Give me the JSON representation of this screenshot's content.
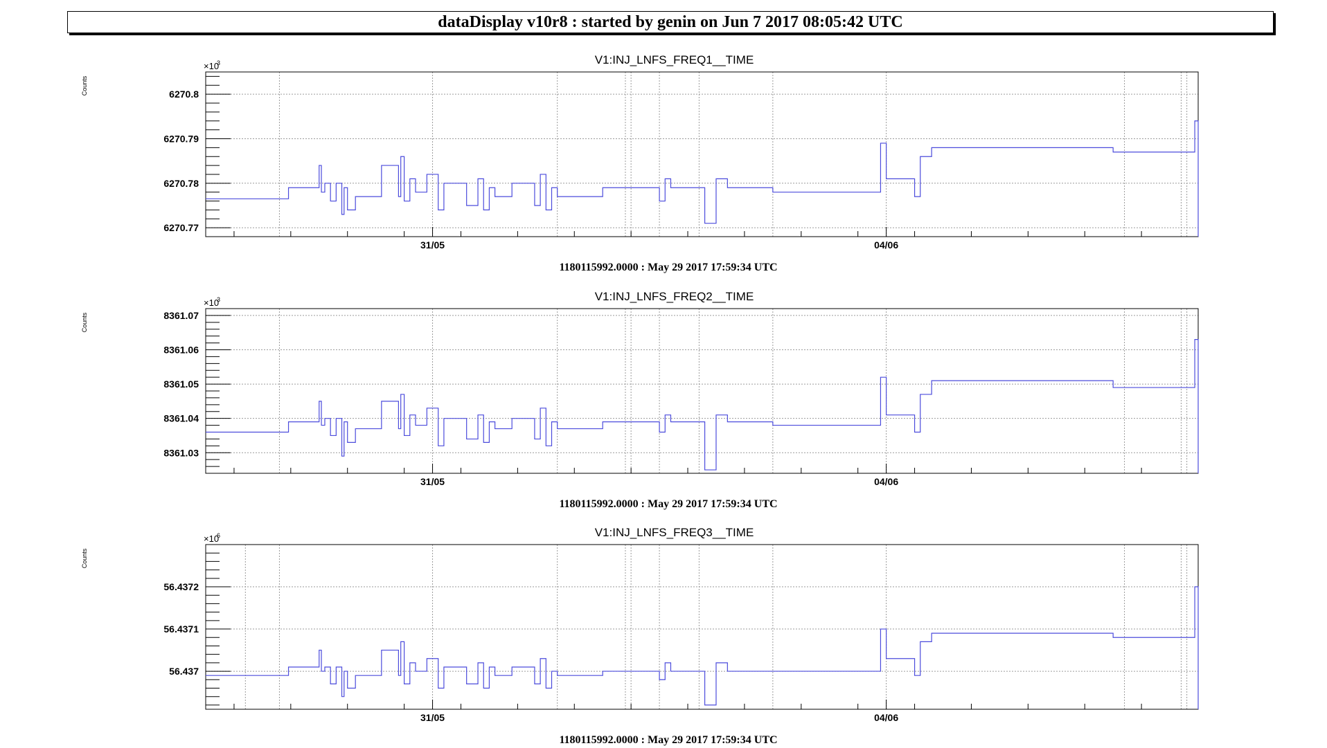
{
  "header": {
    "title": "dataDisplay v10r8 : started by genin on Jun  7 2017 08:05:42 UTC"
  },
  "colors": {
    "series": "#4b4bdc",
    "grid": "#9a9a9a",
    "axis": "#000000"
  },
  "chart_data": [
    {
      "type": "line",
      "title": "V1:INJ_LNFS_FREQ1__TIME",
      "ylabel": "Counts",
      "xlabel": "1180115992.0000 : May 29 2017 17:59:34 UTC",
      "multiplier": "×10",
      "multiplier_exp": "3",
      "x_unit": "days since May 29 2017 17:59:34 UTC",
      "xlim": [
        0,
        8.75
      ],
      "ylim": [
        6270.768,
        6270.805
      ],
      "yticks": [
        6270.77,
        6270.78,
        6270.79,
        6270.8
      ],
      "ytick_labels": [
        "6270.77",
        "6270.78",
        "6270.79",
        "6270.8"
      ],
      "xticks": [
        2.0,
        6.0
      ],
      "xtick_labels": [
        "31/05",
        "04/06"
      ],
      "x_gridlines": [
        0.65,
        2.0,
        3.1,
        3.7,
        3.75,
        4.0,
        4.35,
        5.0,
        6.0,
        8.1,
        8.6,
        8.65
      ],
      "series": [
        {
          "x": [
            0,
            0.72,
            0.73,
            0.98,
            1.0,
            1.02,
            1.05,
            1.1,
            1.15,
            1.2,
            1.22,
            1.25,
            1.32,
            1.4,
            1.55,
            1.7,
            1.72,
            1.75,
            1.8,
            1.85,
            1.9,
            1.95,
            2.05,
            2.1,
            2.15,
            2.3,
            2.4,
            2.45,
            2.5,
            2.55,
            2.6,
            2.7,
            2.9,
            2.95,
            3.0,
            3.05,
            3.1,
            3.3,
            3.5,
            3.9,
            3.95,
            4.0,
            4.05,
            4.1,
            4.2,
            4.4,
            4.5,
            4.6,
            5.0,
            5.05,
            5.9,
            5.95,
            6.0,
            6.05,
            6.1,
            6.2,
            6.25,
            6.3,
            6.35,
            6.4,
            7.9,
            7.95,
            8.0,
            8.7,
            8.72,
            8.75
          ],
          "values": [
            6270.7765,
            6270.7765,
            6270.779,
            6270.779,
            6270.784,
            6270.778,
            6270.78,
            6270.776,
            6270.78,
            6270.773,
            6270.779,
            6270.774,
            6270.777,
            6270.777,
            6270.784,
            6270.777,
            6270.786,
            6270.776,
            6270.781,
            6270.778,
            6270.778,
            6270.782,
            6270.774,
            6270.78,
            6270.78,
            6270.775,
            6270.781,
            6270.774,
            6270.779,
            6270.777,
            6270.777,
            6270.78,
            6270.775,
            6270.782,
            6270.774,
            6270.779,
            6270.777,
            6270.777,
            6270.779,
            6270.779,
            6270.779,
            6270.776,
            6270.781,
            6270.779,
            6270.779,
            6270.771,
            6270.781,
            6270.779,
            6270.778,
            6270.778,
            6270.778,
            6270.789,
            6270.781,
            6270.781,
            6270.781,
            6270.781,
            6270.777,
            6270.786,
            6270.786,
            6270.788,
            6270.788,
            6270.788,
            6270.787,
            6270.787,
            6270.794,
            6270.768
          ]
        }
      ]
    },
    {
      "type": "line",
      "title": "V1:INJ_LNFS_FREQ2__TIME",
      "ylabel": "Counts",
      "xlabel": "1180115992.0000 : May 29 2017 17:59:34 UTC",
      "multiplier": "×10",
      "multiplier_exp": "3",
      "x_unit": "days since May 29 2017 17:59:34 UTC",
      "xlim": [
        0,
        8.75
      ],
      "ylim": [
        8361.024,
        8361.072
      ],
      "yticks": [
        8361.03,
        8361.04,
        8361.05,
        8361.06,
        8361.07
      ],
      "ytick_labels": [
        "8361.03",
        "8361.04",
        "8361.05",
        "8361.06",
        "8361.07"
      ],
      "xticks": [
        2.0,
        6.0
      ],
      "xtick_labels": [
        "31/05",
        "04/06"
      ],
      "x_gridlines": [
        0.65,
        2.0,
        3.1,
        3.7,
        3.75,
        4.0,
        4.35,
        5.0,
        6.0,
        8.1,
        8.6,
        8.65
      ],
      "series": [
        {
          "x": [
            0,
            0.72,
            0.73,
            0.98,
            1.0,
            1.02,
            1.05,
            1.1,
            1.15,
            1.2,
            1.22,
            1.25,
            1.32,
            1.4,
            1.55,
            1.7,
            1.72,
            1.75,
            1.8,
            1.85,
            1.9,
            1.95,
            2.05,
            2.1,
            2.15,
            2.3,
            2.4,
            2.45,
            2.5,
            2.55,
            2.6,
            2.7,
            2.9,
            2.95,
            3.0,
            3.05,
            3.1,
            3.3,
            3.5,
            3.9,
            3.95,
            4.0,
            4.05,
            4.1,
            4.2,
            4.4,
            4.5,
            4.6,
            5.0,
            5.05,
            5.9,
            5.95,
            6.0,
            6.05,
            6.1,
            6.2,
            6.25,
            6.3,
            6.35,
            6.4,
            7.9,
            7.95,
            8.0,
            8.7,
            8.72,
            8.75
          ],
          "values": [
            8361.036,
            8361.036,
            8361.039,
            8361.039,
            8361.045,
            8361.038,
            8361.04,
            8361.035,
            8361.04,
            8361.029,
            8361.039,
            8361.033,
            8361.037,
            8361.037,
            8361.045,
            8361.037,
            8361.047,
            8361.035,
            8361.041,
            8361.038,
            8361.038,
            8361.043,
            8361.032,
            8361.04,
            8361.04,
            8361.034,
            8361.041,
            8361.033,
            8361.039,
            8361.037,
            8361.037,
            8361.04,
            8361.034,
            8361.043,
            8361.032,
            8361.039,
            8361.037,
            8361.037,
            8361.039,
            8361.039,
            8361.039,
            8361.036,
            8361.041,
            8361.039,
            8361.039,
            8361.025,
            8361.041,
            8361.039,
            8361.038,
            8361.038,
            8361.038,
            8361.052,
            8361.041,
            8361.041,
            8361.041,
            8361.041,
            8361.036,
            8361.047,
            8361.047,
            8361.051,
            8361.051,
            8361.051,
            8361.049,
            8361.049,
            8361.063,
            8361.024
          ]
        }
      ]
    },
    {
      "type": "line",
      "title": "V1:INJ_LNFS_FREQ3__TIME",
      "ylabel": "Counts",
      "xlabel": "1180115992.0000 : May 29 2017 17:59:34 UTC",
      "multiplier": "×10",
      "multiplier_exp": "6",
      "x_unit": "days since May 29 2017 17:59:34 UTC",
      "xlim": [
        0,
        8.75
      ],
      "ylim": [
        56.43691,
        56.4373
      ],
      "yticks": [
        56.437,
        56.4371,
        56.4372
      ],
      "ytick_labels": [
        "56.437",
        "56.4371",
        "56.4372"
      ],
      "xticks": [
        2.0,
        6.0
      ],
      "xtick_labels": [
        "31/05",
        "04/06"
      ],
      "x_gridlines": [
        0.35,
        0.65,
        2.0,
        3.1,
        3.7,
        3.75,
        4.0,
        4.35,
        5.0,
        6.0,
        8.1,
        8.6,
        8.65
      ],
      "series": [
        {
          "x": [
            0,
            0.72,
            0.73,
            0.98,
            1.0,
            1.02,
            1.05,
            1.1,
            1.15,
            1.2,
            1.22,
            1.25,
            1.32,
            1.4,
            1.55,
            1.7,
            1.72,
            1.75,
            1.8,
            1.85,
            1.9,
            1.95,
            2.05,
            2.1,
            2.15,
            2.3,
            2.4,
            2.45,
            2.5,
            2.55,
            2.6,
            2.7,
            2.9,
            2.95,
            3.0,
            3.05,
            3.1,
            3.3,
            3.5,
            3.9,
            3.95,
            4.0,
            4.05,
            4.1,
            4.2,
            4.4,
            4.5,
            4.6,
            5.0,
            5.05,
            5.9,
            5.95,
            6.0,
            6.05,
            6.1,
            6.2,
            6.25,
            6.3,
            6.35,
            6.4,
            7.9,
            7.95,
            8.0,
            8.7,
            8.72,
            8.75
          ],
          "values": [
            56.43699,
            56.43699,
            56.43701,
            56.43701,
            56.43705,
            56.437,
            56.43701,
            56.43697,
            56.43701,
            56.43694,
            56.437,
            56.43696,
            56.43699,
            56.43699,
            56.43705,
            56.43699,
            56.43707,
            56.43697,
            56.43702,
            56.437,
            56.437,
            56.43703,
            56.43696,
            56.43701,
            56.43701,
            56.43697,
            56.43702,
            56.43696,
            56.43701,
            56.43699,
            56.43699,
            56.43701,
            56.43697,
            56.43703,
            56.43696,
            56.437,
            56.43699,
            56.43699,
            56.437,
            56.437,
            56.437,
            56.43698,
            56.43702,
            56.437,
            56.437,
            56.43692,
            56.43702,
            56.437,
            56.437,
            56.437,
            56.437,
            56.4371,
            56.43703,
            56.43703,
            56.43703,
            56.43703,
            56.43699,
            56.43707,
            56.43707,
            56.43709,
            56.43709,
            56.43709,
            56.43708,
            56.43708,
            56.4372,
            56.43691
          ]
        }
      ]
    }
  ]
}
